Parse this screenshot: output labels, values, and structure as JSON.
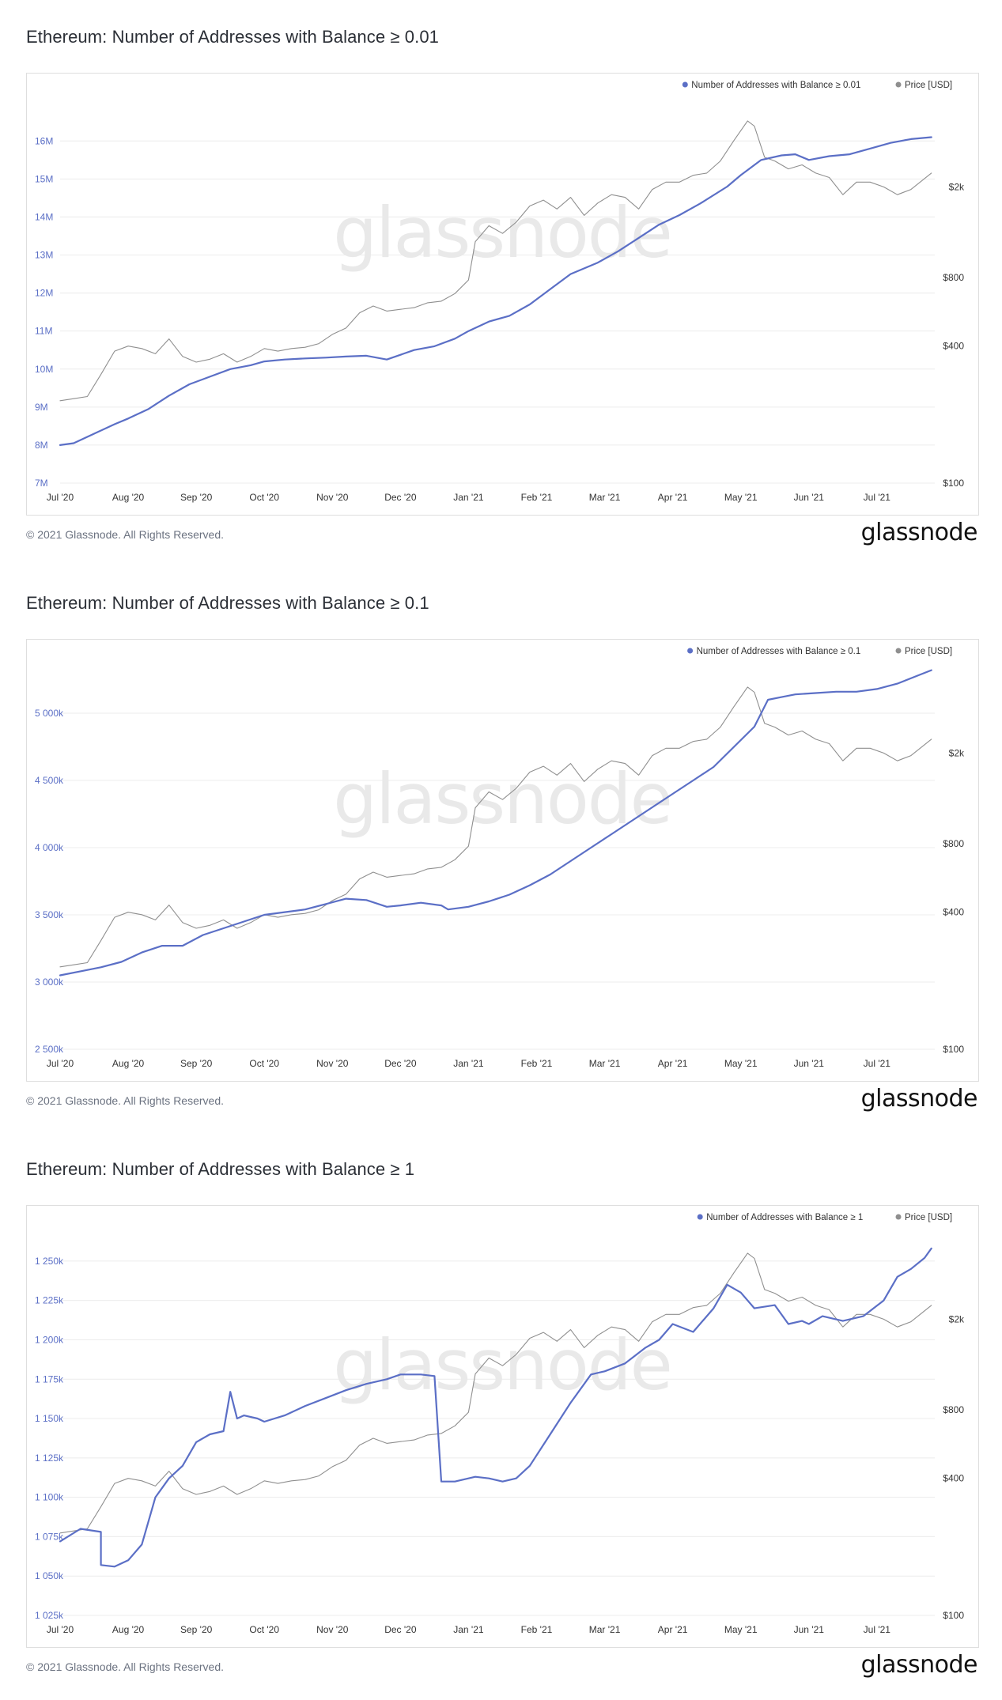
{
  "footer": {
    "copyright": "© 2021 Glassnode. All Rights Reserved.",
    "logo": "glassnode"
  },
  "watermark": "glassnode",
  "colors": {
    "blue": "#5b6fc6",
    "gray": "#8f8f8f",
    "grid": "#ececec"
  },
  "chart_data": [
    {
      "type": "line",
      "title": "Ethereum: Number of Addresses with Balance ≥ 0.01",
      "xlabel": "",
      "ylabel": "",
      "x_ticks": [
        "Jul '20",
        "Aug '20",
        "Sep '20",
        "Oct '20",
        "Nov '20",
        "Dec '20",
        "Jan '21",
        "Feb '21",
        "Mar '21",
        "Apr '21",
        "May '21",
        "Jun '21",
        "Jul '21"
      ],
      "y_left_ticks": [
        {
          "label": "7M",
          "value": 7000000
        },
        {
          "label": "8M",
          "value": 8000000
        },
        {
          "label": "9M",
          "value": 9000000
        },
        {
          "label": "10M",
          "value": 10000000
        },
        {
          "label": "11M",
          "value": 11000000
        },
        {
          "label": "12M",
          "value": 12000000
        },
        {
          "label": "13M",
          "value": 13000000
        },
        {
          "label": "14M",
          "value": 14000000
        },
        {
          "label": "15M",
          "value": 15000000
        },
        {
          "label": "16M",
          "value": 16000000
        }
      ],
      "ylim_left": [
        7000000,
        16900000
      ],
      "y_right_ticks": [
        {
          "label": "$100",
          "value": 100
        },
        {
          "label": "$400",
          "value": 400
        },
        {
          "label": "$800",
          "value": 800
        },
        {
          "label": "$2k",
          "value": 2000
        }
      ],
      "ylim_right_log": [
        100,
        4500
      ],
      "legend": {
        "position": "top-right",
        "items": [
          {
            "label": "Number of Addresses with Balance ≥ 0.01",
            "color": "#5b6fc6"
          },
          {
            "label": "Price [USD]",
            "color": "#8f8f8f"
          }
        ]
      },
      "grid": true,
      "series": [
        {
          "name": "Number of Addresses with Balance ≥ 0.01",
          "axis": "left",
          "color": "#5b6fc6",
          "x": [
            0,
            0.2,
            0.5,
            0.8,
            1,
            1.3,
            1.6,
            1.9,
            2.2,
            2.5,
            2.8,
            3,
            3.3,
            3.6,
            3.9,
            4.2,
            4.5,
            4.8,
            5.2,
            5.5,
            5.8,
            6,
            6.3,
            6.6,
            6.9,
            7.2,
            7.5,
            7.9,
            8.2,
            8.5,
            8.8,
            9.1,
            9.4,
            9.8,
            10,
            10.3,
            10.6,
            10.8,
            11,
            11.3,
            11.6,
            11.9,
            12.2,
            12.5,
            12.8
          ],
          "values": [
            8000000,
            8050000,
            8300000,
            8550000,
            8700000,
            8950000,
            9300000,
            9600000,
            9800000,
            10000000,
            10100000,
            10200000,
            10250000,
            10280000,
            10300000,
            10330000,
            10350000,
            10250000,
            10500000,
            10600000,
            10800000,
            11000000,
            11250000,
            11400000,
            11700000,
            12100000,
            12500000,
            12800000,
            13100000,
            13450000,
            13800000,
            14050000,
            14350000,
            14800000,
            15100000,
            15500000,
            15620000,
            15650000,
            15500000,
            15600000,
            15650000,
            15800000,
            15950000,
            16050000,
            16100000
          ]
        },
        {
          "name": "Price [USD]",
          "axis": "right",
          "color": "#8f8f8f",
          "x": [
            0,
            0.2,
            0.4,
            0.6,
            0.8,
            1,
            1.2,
            1.4,
            1.6,
            1.8,
            2,
            2.2,
            2.4,
            2.6,
            2.8,
            3,
            3.2,
            3.4,
            3.6,
            3.8,
            4,
            4.2,
            4.4,
            4.6,
            4.8,
            5,
            5.2,
            5.4,
            5.6,
            5.8,
            6,
            6.1,
            6.3,
            6.5,
            6.7,
            6.9,
            7.1,
            7.3,
            7.5,
            7.7,
            7.9,
            8.1,
            8.3,
            8.5,
            8.7,
            8.9,
            9.1,
            9.3,
            9.5,
            9.7,
            9.9,
            10.1,
            10.2,
            10.35,
            10.5,
            10.7,
            10.9,
            11.1,
            11.3,
            11.5,
            11.7,
            11.9,
            12.1,
            12.3,
            12.5,
            12.8
          ],
          "values": [
            230,
            235,
            240,
            300,
            380,
            400,
            390,
            370,
            430,
            360,
            340,
            350,
            370,
            340,
            360,
            390,
            380,
            390,
            395,
            410,
            450,
            480,
            560,
            600,
            570,
            580,
            590,
            620,
            630,
            680,
            780,
            1150,
            1350,
            1250,
            1400,
            1650,
            1750,
            1600,
            1800,
            1500,
            1700,
            1850,
            1800,
            1600,
            1950,
            2100,
            2100,
            2250,
            2300,
            2600,
            3200,
            3900,
            3700,
            2700,
            2600,
            2400,
            2500,
            2300,
            2200,
            1850,
            2100,
            2100,
            2000,
            1850,
            1950,
            2300
          ]
        }
      ]
    },
    {
      "type": "line",
      "title": "Ethereum: Number of Addresses with Balance ≥ 0.1",
      "xlabel": "",
      "ylabel": "",
      "x_ticks": [
        "Jul '20",
        "Aug '20",
        "Sep '20",
        "Oct '20",
        "Nov '20",
        "Dec '20",
        "Jan '21",
        "Feb '21",
        "Mar '21",
        "Apr '21",
        "May '21",
        "Jun '21",
        "Jul '21"
      ],
      "y_left_ticks": [
        {
          "label": "2 500k",
          "value": 2500000
        },
        {
          "label": "3 000k",
          "value": 3000000
        },
        {
          "label": "3 500k",
          "value": 3500000
        },
        {
          "label": "4 000k",
          "value": 4000000
        },
        {
          "label": "4 500k",
          "value": 4500000
        },
        {
          "label": "5 000k",
          "value": 5000000
        }
      ],
      "ylim_left": [
        2500000,
        5300000
      ],
      "y_right_ticks": [
        {
          "label": "$100",
          "value": 100
        },
        {
          "label": "$400",
          "value": 400
        },
        {
          "label": "$800",
          "value": 800
        },
        {
          "label": "$2k",
          "value": 2000
        }
      ],
      "ylim_right_log": [
        100,
        4500
      ],
      "legend": {
        "position": "top-right",
        "items": [
          {
            "label": "Number of Addresses with Balance ≥ 0.1",
            "color": "#5b6fc6"
          },
          {
            "label": "Price [USD]",
            "color": "#8f8f8f"
          }
        ]
      },
      "grid": true,
      "series": [
        {
          "name": "Number of Addresses with Balance ≥ 0.1",
          "axis": "left",
          "color": "#5b6fc6",
          "x": [
            0,
            0.3,
            0.6,
            0.9,
            1.2,
            1.5,
            1.8,
            2.1,
            2.4,
            2.7,
            3,
            3.3,
            3.6,
            3.9,
            4.2,
            4.5,
            4.8,
            5,
            5.3,
            5.6,
            5.7,
            6,
            6.3,
            6.6,
            6.9,
            7.2,
            7.5,
            7.8,
            8.1,
            8.4,
            8.7,
            9,
            9.3,
            9.6,
            9.9,
            10.2,
            10.4,
            10.6,
            10.8,
            11.1,
            11.4,
            11.7,
            12,
            12.3,
            12.6,
            12.8
          ],
          "values": [
            3050000,
            3080000,
            3110000,
            3150000,
            3220000,
            3270000,
            3270000,
            3350000,
            3400000,
            3450000,
            3500000,
            3520000,
            3540000,
            3580000,
            3620000,
            3610000,
            3560000,
            3570000,
            3590000,
            3570000,
            3540000,
            3560000,
            3600000,
            3650000,
            3720000,
            3800000,
            3900000,
            4000000,
            4100000,
            4200000,
            4300000,
            4400000,
            4500000,
            4600000,
            4750000,
            4900000,
            5100000,
            5120000,
            5140000,
            5150000,
            5160000,
            5160000,
            5180000,
            5220000,
            5280000,
            5320000
          ]
        },
        {
          "name": "Price [USD]",
          "axis": "right",
          "color": "#8f8f8f",
          "x": [
            0,
            0.2,
            0.4,
            0.6,
            0.8,
            1,
            1.2,
            1.4,
            1.6,
            1.8,
            2,
            2.2,
            2.4,
            2.6,
            2.8,
            3,
            3.2,
            3.4,
            3.6,
            3.8,
            4,
            4.2,
            4.4,
            4.6,
            4.8,
            5,
            5.2,
            5.4,
            5.6,
            5.8,
            6,
            6.1,
            6.3,
            6.5,
            6.7,
            6.9,
            7.1,
            7.3,
            7.5,
            7.7,
            7.9,
            8.1,
            8.3,
            8.5,
            8.7,
            8.9,
            9.1,
            9.3,
            9.5,
            9.7,
            9.9,
            10.1,
            10.2,
            10.35,
            10.5,
            10.7,
            10.9,
            11.1,
            11.3,
            11.5,
            11.7,
            11.9,
            12.1,
            12.3,
            12.5,
            12.8
          ],
          "values": [
            230,
            235,
            240,
            300,
            380,
            400,
            390,
            370,
            430,
            360,
            340,
            350,
            370,
            340,
            360,
            390,
            380,
            390,
            395,
            410,
            450,
            480,
            560,
            600,
            570,
            580,
            590,
            620,
            630,
            680,
            780,
            1150,
            1350,
            1250,
            1400,
            1650,
            1750,
            1600,
            1800,
            1500,
            1700,
            1850,
            1800,
            1600,
            1950,
            2100,
            2100,
            2250,
            2300,
            2600,
            3200,
            3900,
            3700,
            2700,
            2600,
            2400,
            2500,
            2300,
            2200,
            1850,
            2100,
            2100,
            2000,
            1850,
            1950,
            2300
          ]
        }
      ]
    },
    {
      "type": "line",
      "title": "Ethereum: Number of Addresses with Balance ≥ 1",
      "xlabel": "",
      "ylabel": "",
      "x_ticks": [
        "Jul '20",
        "Aug '20",
        "Sep '20",
        "Oct '20",
        "Nov '20",
        "Dec '20",
        "Jan '21",
        "Feb '21",
        "Mar '21",
        "Apr '21",
        "May '21",
        "Jun '21",
        "Jul '21"
      ],
      "y_left_ticks": [
        {
          "label": "1 025k",
          "value": 1025000
        },
        {
          "label": "1 050k",
          "value": 1050000
        },
        {
          "label": "1 075k",
          "value": 1075000
        },
        {
          "label": "1 100k",
          "value": 1100000
        },
        {
          "label": "1 125k",
          "value": 1125000
        },
        {
          "label": "1 150k",
          "value": 1150000
        },
        {
          "label": "1 175k",
          "value": 1175000
        },
        {
          "label": "1 200k",
          "value": 1200000
        },
        {
          "label": "1 225k",
          "value": 1225000
        },
        {
          "label": "1 250k",
          "value": 1250000
        }
      ],
      "ylim_left": [
        1025000,
        1264000
      ],
      "y_right_ticks": [
        {
          "label": "$100",
          "value": 100
        },
        {
          "label": "$400",
          "value": 400
        },
        {
          "label": "$800",
          "value": 800
        },
        {
          "label": "$2k",
          "value": 2000
        }
      ],
      "ylim_right_log": [
        100,
        4500
      ],
      "legend": {
        "position": "top-right",
        "items": [
          {
            "label": "Number of Addresses with Balance ≥ 1",
            "color": "#5b6fc6"
          },
          {
            "label": "Price [USD]",
            "color": "#8f8f8f"
          }
        ]
      },
      "grid": true,
      "series": [
        {
          "name": "Number of Addresses with Balance ≥ 1",
          "axis": "left",
          "color": "#5b6fc6",
          "x": [
            0,
            0.3,
            0.6,
            0.6,
            0.8,
            1.0,
            1.2,
            1.4,
            1.6,
            1.8,
            2.0,
            2.2,
            2.4,
            2.5,
            2.6,
            2.7,
            2.9,
            3.0,
            3.3,
            3.6,
            3.9,
            4.2,
            4.5,
            4.8,
            5.0,
            5.3,
            5.5,
            5.6,
            5.8,
            6.1,
            6.3,
            6.5,
            6.7,
            6.9,
            7.2,
            7.5,
            7.8,
            8.0,
            8.3,
            8.6,
            8.8,
            9.0,
            9.3,
            9.6,
            9.8,
            10.0,
            10.2,
            10.5,
            10.7,
            10.9,
            11.0,
            11.2,
            11.5,
            11.8,
            12.1,
            12.3,
            12.5,
            12.7,
            12.8
          ],
          "values": [
            1072000,
            1080000,
            1078000,
            1057000,
            1056000,
            1060000,
            1070000,
            1100000,
            1112000,
            1120000,
            1135000,
            1140000,
            1142000,
            1167000,
            1150000,
            1152000,
            1150000,
            1148000,
            1152000,
            1158000,
            1163000,
            1168000,
            1172000,
            1175000,
            1178000,
            1178000,
            1177000,
            1110000,
            1110000,
            1113000,
            1112000,
            1110000,
            1112000,
            1120000,
            1140000,
            1160000,
            1178000,
            1180000,
            1185000,
            1195000,
            1200000,
            1210000,
            1205000,
            1220000,
            1235000,
            1230000,
            1220000,
            1222000,
            1210000,
            1212000,
            1210000,
            1215000,
            1212000,
            1215000,
            1225000,
            1240000,
            1245000,
            1252000,
            1258000
          ]
        },
        {
          "name": "Price [USD]",
          "axis": "right",
          "color": "#8f8f8f",
          "x": [
            0,
            0.2,
            0.4,
            0.6,
            0.8,
            1,
            1.2,
            1.4,
            1.6,
            1.8,
            2,
            2.2,
            2.4,
            2.6,
            2.8,
            3,
            3.2,
            3.4,
            3.6,
            3.8,
            4,
            4.2,
            4.4,
            4.6,
            4.8,
            5,
            5.2,
            5.4,
            5.6,
            5.8,
            6,
            6.1,
            6.3,
            6.5,
            6.7,
            6.9,
            7.1,
            7.3,
            7.5,
            7.7,
            7.9,
            8.1,
            8.3,
            8.5,
            8.7,
            8.9,
            9.1,
            9.3,
            9.5,
            9.7,
            9.9,
            10.1,
            10.2,
            10.35,
            10.5,
            10.7,
            10.9,
            11.1,
            11.3,
            11.5,
            11.7,
            11.9,
            12.1,
            12.3,
            12.5,
            12.8
          ],
          "values": [
            230,
            235,
            240,
            300,
            380,
            400,
            390,
            370,
            430,
            360,
            340,
            350,
            370,
            340,
            360,
            390,
            380,
            390,
            395,
            410,
            450,
            480,
            560,
            600,
            570,
            580,
            590,
            620,
            630,
            680,
            780,
            1150,
            1350,
            1250,
            1400,
            1650,
            1750,
            1600,
            1800,
            1500,
            1700,
            1850,
            1800,
            1600,
            1950,
            2100,
            2100,
            2250,
            2300,
            2600,
            3200,
            3900,
            3700,
            2700,
            2600,
            2400,
            2500,
            2300,
            2200,
            1850,
            2100,
            2100,
            2000,
            1850,
            1950,
            2300
          ]
        }
      ]
    }
  ]
}
